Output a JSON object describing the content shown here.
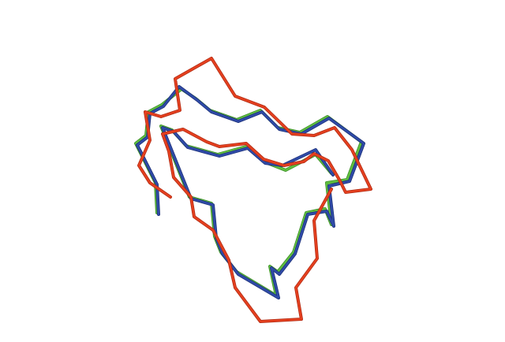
{
  "scene": {
    "background": "#ffffff",
    "traces": [
      {
        "name": "green-trace",
        "color": "#5fbf3f",
        "shade": "#3e8f2a"
      },
      {
        "name": "blue-trace",
        "color": "#2f4ba8",
        "shade": "#1c2f78"
      },
      {
        "name": "red-trace",
        "color": "#e5401f",
        "shade": "#b02a12"
      }
    ]
  }
}
